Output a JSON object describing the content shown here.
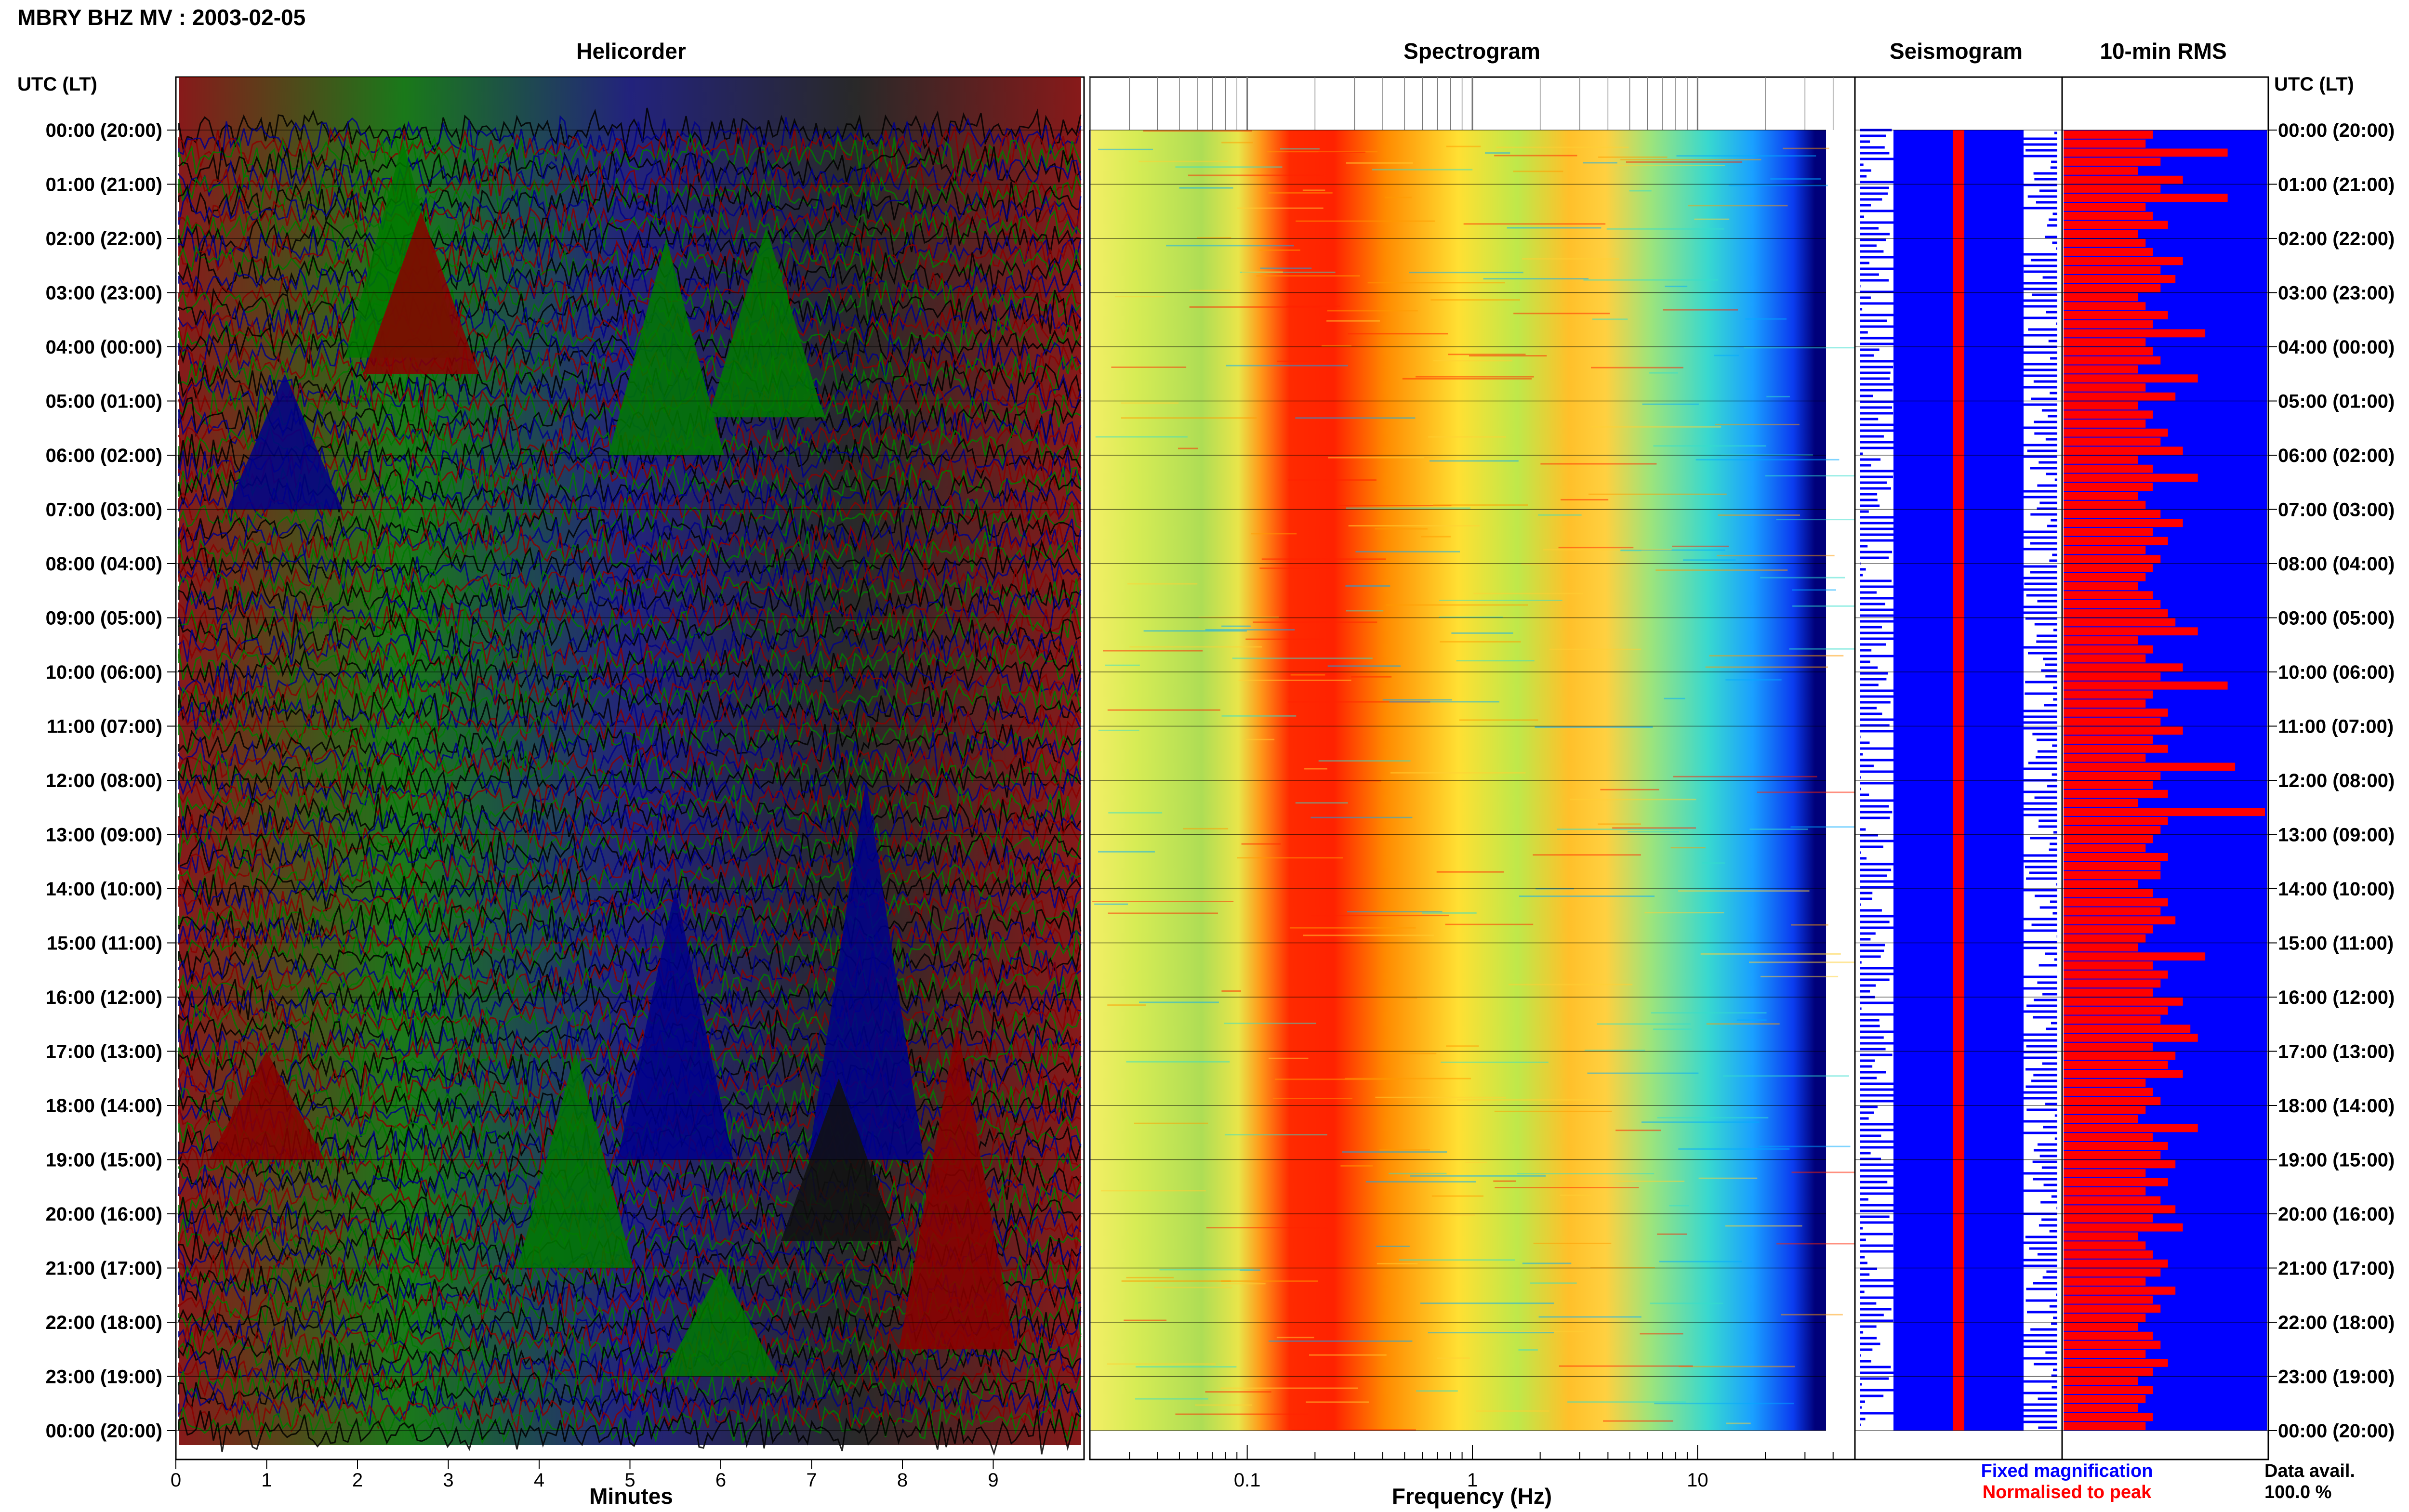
{
  "header": {
    "title": "MBRY BHZ MV : 2003-02-05",
    "utc_label_left": "UTC (LT)",
    "utc_label_right": "UTC (LT)"
  },
  "panels": {
    "helicorder": "Helicorder",
    "spectrogram": "Spectrogram",
    "seismogram": "Seismogram",
    "rms": "10-min RMS"
  },
  "axes": {
    "helicorder_xlabel": "Minutes",
    "spectrogram_xlabel": "Frequency (Hz)"
  },
  "footer": {
    "legend_fixed": "Fixed magnification",
    "legend_normalised": "Normalised to peak",
    "data_avail_label": "Data avail.",
    "data_avail_value": "100.0 %"
  },
  "colors": {
    "helicorder_traces": [
      "#000000",
      "#00008b",
      "#8b0000",
      "#007a00"
    ],
    "seismogram_fixed": "#0000ff",
    "seismogram_normalised": "#ff0000",
    "rms_background": "#0000ff",
    "rms_bars": "#ff0000",
    "spectrogram_scale": [
      "#00007a",
      "#0000ff",
      "#00aaff",
      "#33ddcc",
      "#aaee66",
      "#ffee33",
      "#ff9900",
      "#ff2200",
      "#cc0000"
    ]
  },
  "chart_data": {
    "type": "heatmap",
    "title": "MBRY BHZ MV : 2003-02-05",
    "hour_labels": [
      "00:00 (20:00)",
      "01:00 (21:00)",
      "02:00 (22:00)",
      "03:00 (23:00)",
      "04:00 (00:00)",
      "05:00 (01:00)",
      "06:00 (02:00)",
      "07:00 (03:00)",
      "08:00 (04:00)",
      "09:00 (05:00)",
      "10:00 (06:00)",
      "11:00 (07:00)",
      "12:00 (08:00)",
      "13:00 (09:00)",
      "14:00 (10:00)",
      "15:00 (11:00)",
      "16:00 (12:00)",
      "17:00 (13:00)",
      "18:00 (14:00)",
      "19:00 (15:00)",
      "20:00 (16:00)",
      "21:00 (17:00)",
      "22:00 (18:00)",
      "23:00 (19:00)",
      "00:00 (20:00)"
    ],
    "helicorder": {
      "xlabel": "Minutes",
      "xticks": [
        "0",
        "1",
        "2",
        "3",
        "4",
        "5",
        "6",
        "7",
        "8",
        "9"
      ],
      "xlim": [
        0,
        10
      ],
      "rows_per_hour": 6,
      "trace_colors": [
        "black",
        "blue",
        "red",
        "green"
      ]
    },
    "spectrogram": {
      "xlabel": "Frequency (Hz)",
      "scale": "log",
      "xticks": [
        "0.1",
        "1",
        "10"
      ],
      "xlim": [
        0.02,
        50
      ],
      "peak_band_hz": [
        0.15,
        0.5
      ],
      "secondary_band_hz": [
        2,
        6
      ]
    },
    "rms_10min": [
      1.2,
      1.1,
      2.2,
      1.3,
      1.0,
      1.6,
      1.3,
      2.2,
      1.1,
      1.2,
      1.4,
      1.0,
      1.1,
      1.2,
      1.6,
      1.3,
      1.5,
      1.3,
      1.0,
      1.1,
      1.4,
      1.2,
      1.9,
      1.1,
      1.2,
      1.3,
      1.0,
      1.8,
      1.1,
      1.5,
      1.0,
      1.2,
      1.1,
      1.4,
      1.3,
      1.6,
      1.0,
      1.2,
      1.8,
      1.2,
      1.0,
      1.1,
      1.3,
      1.6,
      1.2,
      1.4,
      1.1,
      1.3,
      1.2,
      1.1,
      1.0,
      1.2,
      1.3,
      1.4,
      1.5,
      1.8,
      1.0,
      1.2,
      1.1,
      1.6,
      1.3,
      2.2,
      1.2,
      1.1,
      1.4,
      1.3,
      1.6,
      1.2,
      1.4,
      1.1,
      2.3,
      1.3,
      1.2,
      1.4,
      1.0,
      2.7,
      1.4,
      1.3,
      1.2,
      1.1,
      1.4,
      1.3,
      1.3,
      1.0,
      1.2,
      1.4,
      1.3,
      1.5,
      1.2,
      1.1,
      1.0,
      1.9,
      1.2,
      1.4,
      1.3,
      1.2,
      1.6,
      1.4,
      1.3,
      1.7,
      1.8,
      1.2,
      1.5,
      1.4,
      1.6,
      1.1,
      1.2,
      1.3,
      1.1,
      1.0,
      1.8,
      1.2,
      1.4,
      1.3,
      1.5,
      1.1,
      1.4,
      1.1,
      1.3,
      1.5,
      1.2,
      1.6,
      1.0,
      1.1,
      1.2,
      1.4,
      1.3,
      1.1,
      1.5,
      1.2,
      1.3,
      1.1,
      1.0,
      1.2,
      1.3,
      1.1,
      1.4,
      1.2,
      1.0,
      1.2,
      1.1,
      1.0,
      1.2,
      1.1,
      1.3,
      1.0,
      1.2,
      1.1,
      1.3,
      1.2,
      1.0,
      1.2,
      1.3,
      1.1,
      1.0,
      1.2,
      1.1,
      1.3,
      1.0,
      1.0,
      1.4,
      1.1,
      1.2,
      1.3,
      1.2,
      1.1,
      1.2,
      1.1,
      1.3,
      1.2,
      1.0,
      1.3,
      1.0,
      1.3,
      1.1,
      1.0,
      1.3,
      1.2,
      1.1,
      1.2,
      1.4,
      1.3,
      1.1,
      1.2,
      1.3,
      1.0,
      1.1,
      1.3,
      1.4,
      1.2,
      1.0,
      1.1,
      1.3,
      1.2,
      1.0,
      1.1,
      1.2,
      1.2,
      1.1,
      1.3,
      1.2,
      1.0,
      1.2,
      1.0,
      1.1,
      1.3,
      1.0,
      1.2,
      1.3,
      1.1,
      1.0,
      1.2,
      1.1,
      1.2,
      1.1,
      1.0,
      1.3,
      1.1,
      1.2,
      1.0,
      1.1,
      1.2,
      1.1,
      1.3,
      1.2,
      1.0,
      1.3,
      1.1,
      1.2,
      1.0,
      1.1,
      1.2,
      1.1,
      1.3,
      1.2,
      1.0,
      1.2,
      1.1,
      1.2,
      1.1,
      1.3,
      1.2,
      1.0,
      1.1,
      1.2,
      1.1,
      1.0,
      1.3,
      1.1,
      1.2,
      1.0,
      1.3,
      1.1,
      1.2,
      1.2,
      1.3,
      1.1,
      1.0,
      1.2,
      1.4,
      1.1,
      1.2,
      1.0,
      1.3,
      1.2,
      1.1,
      1.0,
      1.2,
      1.1,
      1.0,
      1.2,
      1.3,
      1.1,
      1.0,
      1.2,
      1.1,
      1.3,
      1.0,
      1.2,
      1.1,
      1.3,
      1.0,
      1.2,
      1.1,
      1.0,
      1.2,
      1.1,
      1.0
    ]
  }
}
